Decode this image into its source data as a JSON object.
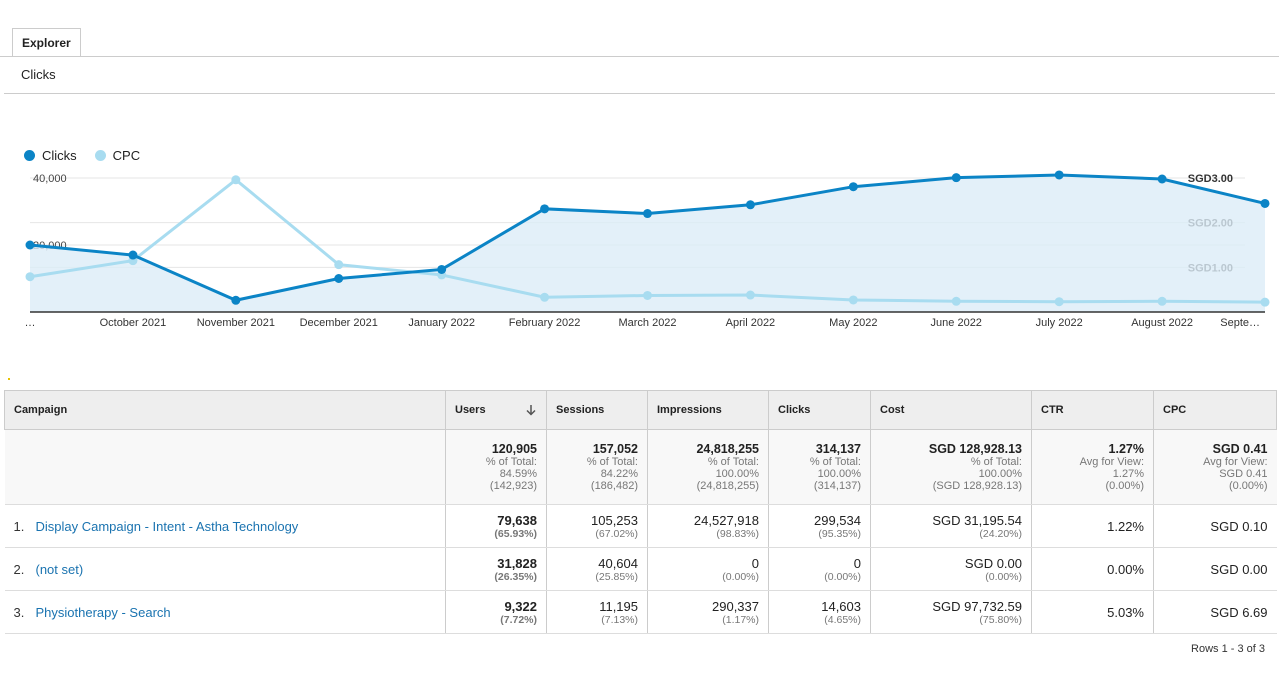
{
  "tabs": {
    "explorer": "Explorer",
    "sub": "Clicks"
  },
  "legend": [
    {
      "label": "Clicks",
      "color": "#0b84c6"
    },
    {
      "label": "CPC",
      "color": "#a8dcf0"
    }
  ],
  "chart_data": {
    "type": "line",
    "categories": [
      "…",
      "October 2021",
      "November 2021",
      "December 2021",
      "January 2022",
      "February 2022",
      "March 2022",
      "April 2022",
      "May 2022",
      "June 2022",
      "July 2022",
      "August 2022",
      "Septe…"
    ],
    "y_left_ticks": [
      "40,000",
      "20,000"
    ],
    "y_right_ticks": [
      "SGD3.00",
      "SGD2.00",
      "SGD1.00"
    ],
    "y_left_range": [
      0,
      40000
    ],
    "y_right_range": [
      0,
      3
    ],
    "series": [
      {
        "name": "Clicks",
        "axis": "left",
        "color": "#0b84c6",
        "values": [
          20000,
          17000,
          3500,
          10000,
          12700,
          30800,
          29400,
          32000,
          37400,
          40100,
          40900,
          39700,
          32400
        ]
      },
      {
        "name": "CPC",
        "axis": "right",
        "color": "#a8dcf0",
        "values": [
          0.79,
          1.15,
          2.96,
          1.06,
          0.83,
          0.33,
          0.37,
          0.38,
          0.27,
          0.24,
          0.23,
          0.24,
          0.22
        ]
      }
    ]
  },
  "table": {
    "headers": {
      "campaign": "Campaign",
      "users": "Users",
      "sessions": "Sessions",
      "impressions": "Impressions",
      "clicks": "Clicks",
      "cost": "Cost",
      "ctr": "CTR",
      "cpc": "CPC"
    },
    "totals": {
      "users": {
        "value": "120,905",
        "l1": "% of Total:",
        "l2": "84.59%",
        "l3": "(142,923)"
      },
      "sessions": {
        "value": "157,052",
        "l1": "% of Total:",
        "l2": "84.22%",
        "l3": "(186,482)"
      },
      "impressions": {
        "value": "24,818,255",
        "l1": "% of Total:",
        "l2": "100.00%",
        "l3": "(24,818,255)"
      },
      "clicks": {
        "value": "314,137",
        "l1": "% of Total:",
        "l2": "100.00%",
        "l3": "(314,137)"
      },
      "cost": {
        "value": "SGD 128,928.13",
        "l1": "% of Total:",
        "l2": "100.00%",
        "l3": "(SGD 128,928.13)"
      },
      "ctr": {
        "value": "1.27%",
        "l1": "Avg for View:",
        "l2": "1.27%",
        "l3": "(0.00%)"
      },
      "cpc": {
        "value": "SGD 0.41",
        "l1": "Avg for View:",
        "l2": "SGD 0.41",
        "l3": "(0.00%)"
      }
    },
    "rows": [
      {
        "index": "1.",
        "campaign": "Display Campaign - Intent - Astha Technology",
        "users": "79,638",
        "users_pct": "(65.93%)",
        "sessions": "105,253",
        "sessions_pct": "(67.02%)",
        "impressions": "24,527,918",
        "impressions_pct": "(98.83%)",
        "clicks": "299,534",
        "clicks_pct": "(95.35%)",
        "cost": "SGD 31,195.54",
        "cost_pct": "(24.20%)",
        "ctr": "1.22%",
        "cpc": "SGD 0.10"
      },
      {
        "index": "2.",
        "campaign": "(not set)",
        "users": "31,828",
        "users_pct": "(26.35%)",
        "sessions": "40,604",
        "sessions_pct": "(25.85%)",
        "impressions": "0",
        "impressions_pct": "(0.00%)",
        "clicks": "0",
        "clicks_pct": "(0.00%)",
        "cost": "SGD 0.00",
        "cost_pct": "(0.00%)",
        "ctr": "0.00%",
        "cpc": "SGD 0.00"
      },
      {
        "index": "3.",
        "campaign": "Physiotherapy - Search",
        "users": "9,322",
        "users_pct": "(7.72%)",
        "sessions": "11,195",
        "sessions_pct": "(7.13%)",
        "impressions": "290,337",
        "impressions_pct": "(1.17%)",
        "clicks": "14,603",
        "clicks_pct": "(4.65%)",
        "cost": "SGD 97,732.59",
        "cost_pct": "(75.80%)",
        "ctr": "5.03%",
        "cpc": "SGD 6.69"
      }
    ],
    "rows_count": "Rows 1 - 3 of 3"
  }
}
